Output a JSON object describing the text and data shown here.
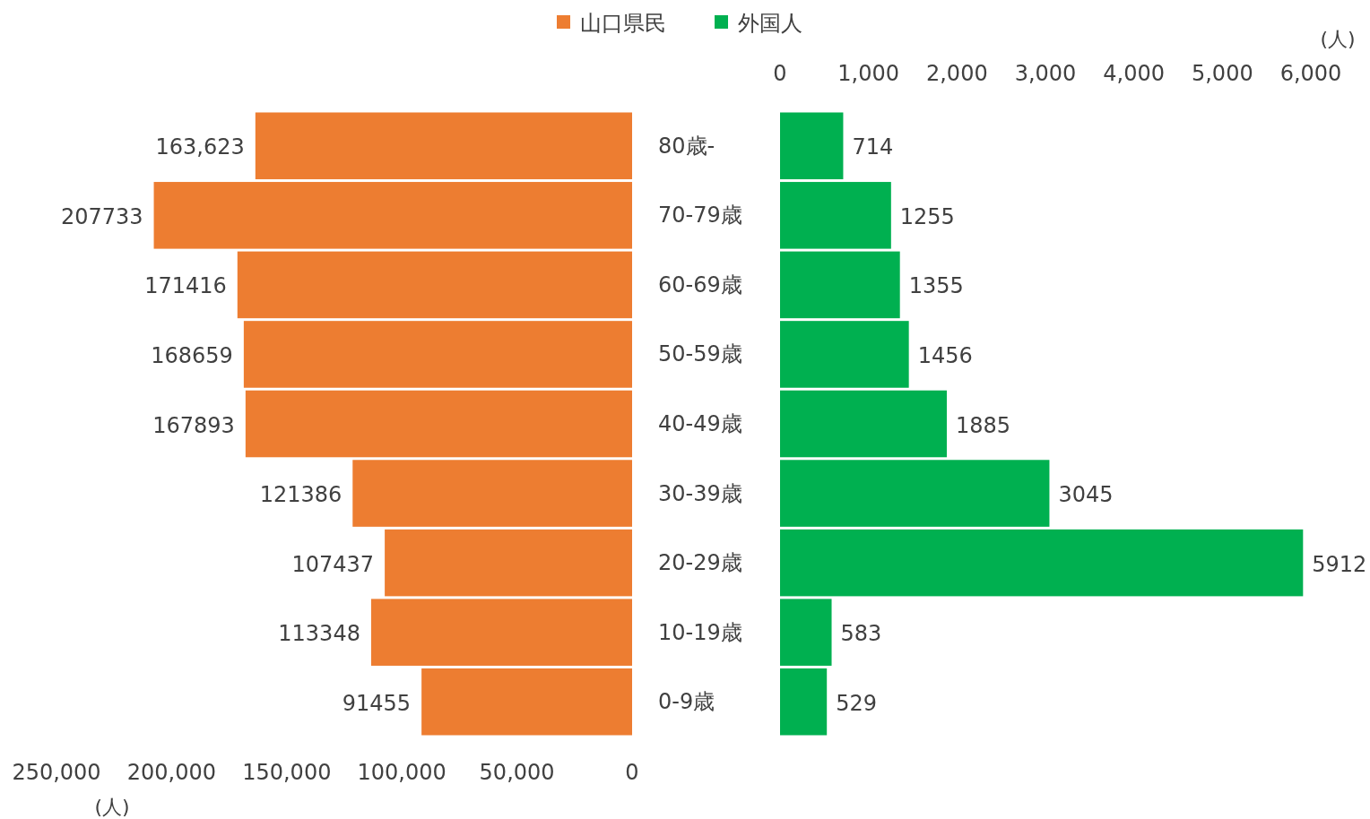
{
  "chart_data": [
    {
      "type": "bar",
      "orientation": "horizontal",
      "legend": "top",
      "xlabel": "(人)",
      "categories": [
        "80歳-",
        "70-79歳",
        "60-69歳",
        "50-59歳",
        "40-49歳",
        "30-39歳",
        "20-29歳",
        "10-19歳",
        "0-9歳"
      ],
      "series": [
        {
          "name": "山口県民",
          "color": "#ed7d31",
          "values": [
            163623,
            207733,
            171416,
            168659,
            167893,
            121386,
            107437,
            113348,
            91455
          ],
          "value_labels": [
            "163,623",
            "207733",
            "171416",
            "168659",
            "167893",
            "121386",
            "107437",
            "113348",
            "91455"
          ]
        }
      ],
      "xlim": [
        250000,
        0
      ],
      "xticks": [
        {
          "value": 250000,
          "label": "250,000"
        },
        {
          "value": 200000,
          "label": "200,000"
        },
        {
          "value": 150000,
          "label": "150,000"
        },
        {
          "value": 100000,
          "label": "100,000"
        },
        {
          "value": 50000,
          "label": "50,000"
        },
        0
      ]
    },
    {
      "type": "bar",
      "orientation": "horizontal",
      "legend": "top",
      "xlabel": "(人)",
      "data_labels": true,
      "categories": [
        null,
        null,
        null,
        null,
        null,
        null,
        null,
        null,
        null
      ],
      "series": [
        {
          "name": "外国人",
          "color": "#00b050",
          "values": [
            714,
            1255,
            1355,
            1456,
            1885,
            3045,
            5912,
            583,
            529
          ]
        }
      ],
      "xlim": [
        0,
        6000
      ],
      "xticks": [
        0,
        {
          "value": 1000,
          "label": "1,000"
        },
        {
          "value": 2000,
          "label": "2,000"
        },
        {
          "value": 3000,
          "label": "3,000"
        },
        {
          "value": 4000,
          "label": "4,000"
        },
        {
          "value": 5000,
          "label": "5,000"
        },
        {
          "value": 6000,
          "label": "6,000"
        }
      ]
    }
  ]
}
